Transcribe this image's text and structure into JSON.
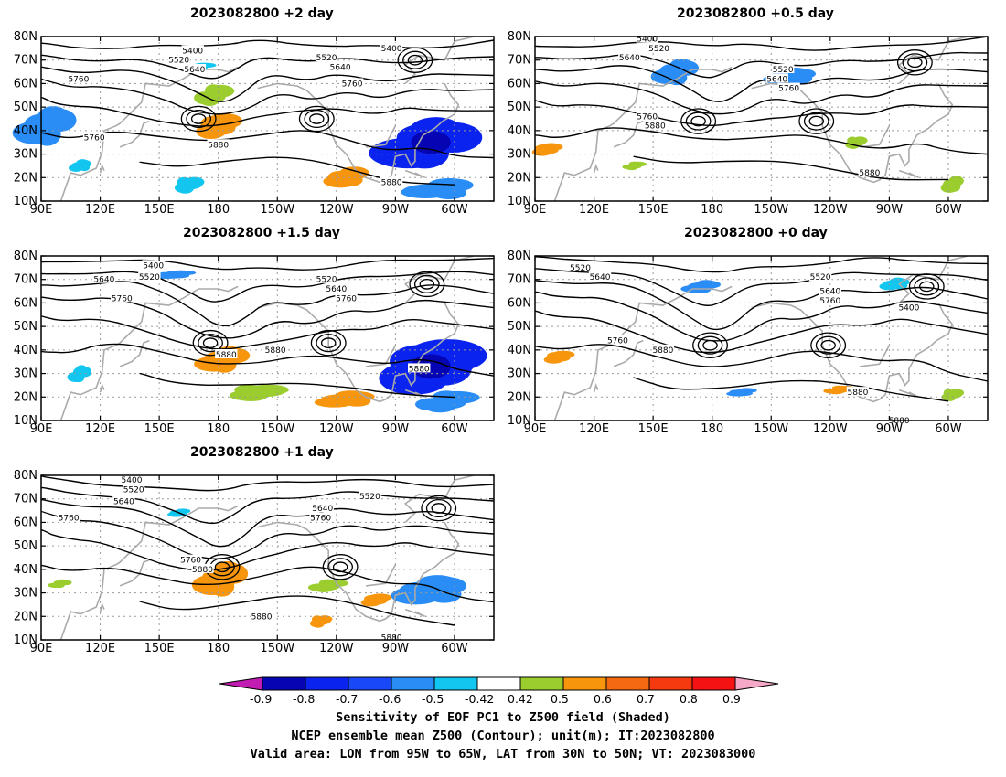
{
  "panels": [
    {
      "id": "p-plus2",
      "title": "2023082800 +2 day",
      "contour_labels": [
        {
          "text": "5400",
          "lon": 167,
          "lat": 74
        },
        {
          "text": "5520",
          "lon": 160,
          "lat": 70
        },
        {
          "text": "5640",
          "lon": 168,
          "lat": 66
        },
        {
          "text": "5760",
          "lon": 109,
          "lat": 62
        },
        {
          "text": "5760",
          "lon": 117,
          "lat": 37
        },
        {
          "text": "5880",
          "lon": 180,
          "lat": 34
        },
        {
          "text": "5400",
          "lon": -92,
          "lat": 75
        },
        {
          "text": "5520",
          "lon": -125,
          "lat": 71
        },
        {
          "text": "5640",
          "lon": -118,
          "lat": 67
        },
        {
          "text": "5760",
          "lon": -112,
          "lat": 60
        },
        {
          "text": "5880",
          "lon": -92,
          "lat": 18
        }
      ],
      "shading": [
        {
          "lon": 93,
          "lat": 42,
          "rx": 8,
          "ry": 9,
          "v": "-0.6"
        },
        {
          "lon": 110,
          "lat": 25,
          "rx": 3,
          "ry": 3,
          "v": "-0.5"
        },
        {
          "lon": 180,
          "lat": 42,
          "rx": 6,
          "ry": 6,
          "v": "0.6"
        },
        {
          "lon": 177,
          "lat": 55,
          "rx": 5,
          "ry": 5,
          "v": "0.5"
        },
        {
          "lon": 165,
          "lat": 17,
          "rx": 4,
          "ry": 4,
          "v": "-0.5"
        },
        {
          "lon": -115,
          "lat": 20,
          "rx": 6,
          "ry": 5,
          "v": "0.6"
        },
        {
          "lon": -72,
          "lat": 35,
          "rx": 14,
          "ry": 12,
          "v": "-0.8"
        },
        {
          "lon": -68,
          "lat": 15,
          "rx": 10,
          "ry": 5,
          "v": "-0.6"
        },
        {
          "lon": -30,
          "lat": 35,
          "rx": 3,
          "ry": 4,
          "v": "-0.5"
        },
        {
          "lon": 170,
          "lat": 67,
          "rx": 4,
          "ry": 2,
          "v": "-0.5"
        }
      ]
    },
    {
      "id": "p-plus05",
      "title": "2023082800 +0.5 day",
      "contour_labels": [
        {
          "text": "5400",
          "lon": 147,
          "lat": 79
        },
        {
          "text": "5520",
          "lon": 153,
          "lat": 75
        },
        {
          "text": "5640",
          "lon": 138,
          "lat": 71
        },
        {
          "text": "5520",
          "lon": -144,
          "lat": 66
        },
        {
          "text": "5640",
          "lon": -147,
          "lat": 62
        },
        {
          "text": "5760",
          "lon": -141,
          "lat": 58
        },
        {
          "text": "5760",
          "lon": 147,
          "lat": 46
        },
        {
          "text": "5880",
          "lon": 151,
          "lat": 42
        },
        {
          "text": "5880",
          "lon": -100,
          "lat": 22
        }
      ],
      "shading": [
        {
          "lon": 162,
          "lat": 65,
          "rx": 6,
          "ry": 6,
          "v": "-0.6"
        },
        {
          "lon": -140,
          "lat": 63,
          "rx": 7,
          "ry": 4,
          "v": "-0.6"
        },
        {
          "lon": 96,
          "lat": 32,
          "rx": 4,
          "ry": 3,
          "v": "0.6"
        },
        {
          "lon": 140,
          "lat": 25,
          "rx": 3,
          "ry": 2,
          "v": "0.5"
        },
        {
          "lon": -107,
          "lat": 35,
          "rx": 3,
          "ry": 3,
          "v": "0.5"
        },
        {
          "lon": -58,
          "lat": 17,
          "rx": 3,
          "ry": 4,
          "v": "0.5"
        }
      ]
    },
    {
      "id": "p-plus15",
      "title": "2023082800 +1.5 day",
      "contour_labels": [
        {
          "text": "5400",
          "lon": 147,
          "lat": 76
        },
        {
          "text": "5520",
          "lon": 145,
          "lat": 71
        },
        {
          "text": "5640",
          "lon": 122,
          "lat": 70
        },
        {
          "text": "5760",
          "lon": 131,
          "lat": 62
        },
        {
          "text": "5880",
          "lon": 184,
          "lat": 38
        },
        {
          "text": "5880",
          "lon": -151,
          "lat": 40
        },
        {
          "text": "5520",
          "lon": -125,
          "lat": 70
        },
        {
          "text": "5640",
          "lon": -120,
          "lat": 66
        },
        {
          "text": "5760",
          "lon": -115,
          "lat": 62
        },
        {
          "text": "5880",
          "lon": -78,
          "lat": 32
        }
      ],
      "shading": [
        {
          "lon": 183,
          "lat": 36,
          "rx": 7,
          "ry": 6,
          "v": "0.6"
        },
        {
          "lon": -115,
          "lat": 19,
          "rx": 8,
          "ry": 4,
          "v": "0.6"
        },
        {
          "lon": -72,
          "lat": 33,
          "rx": 14,
          "ry": 13,
          "v": "-0.8"
        },
        {
          "lon": -65,
          "lat": 18,
          "rx": 8,
          "ry": 5,
          "v": "-0.6"
        },
        {
          "lon": -160,
          "lat": 22,
          "rx": 8,
          "ry": 4,
          "v": "0.5"
        },
        {
          "lon": 157,
          "lat": 72,
          "rx": 6,
          "ry": 2,
          "v": "-0.6"
        },
        {
          "lon": 110,
          "lat": 30,
          "rx": 3,
          "ry": 4,
          "v": "-0.5"
        }
      ]
    },
    {
      "id": "p-plus0",
      "title": "2023082800 +0 day",
      "contour_labels": [
        {
          "text": "5520",
          "lon": 113,
          "lat": 75
        },
        {
          "text": "5640",
          "lon": 123,
          "lat": 71
        },
        {
          "text": "5520",
          "lon": -125,
          "lat": 71
        },
        {
          "text": "5640",
          "lon": -120,
          "lat": 65
        },
        {
          "text": "5760",
          "lon": -120,
          "lat": 61
        },
        {
          "text": "5400",
          "lon": -80,
          "lat": 58
        },
        {
          "text": "5760",
          "lon": 132,
          "lat": 44
        },
        {
          "text": "5880",
          "lon": 155,
          "lat": 40
        },
        {
          "text": "5880",
          "lon": -106,
          "lat": 22
        },
        {
          "text": "5880",
          "lon": -85,
          "lat": 10
        }
      ],
      "shading": [
        {
          "lon": 175,
          "lat": 67,
          "rx": 5,
          "ry": 3,
          "v": "-0.6"
        },
        {
          "lon": -87,
          "lat": 68,
          "rx": 4,
          "ry": 3,
          "v": "-0.5"
        },
        {
          "lon": 102,
          "lat": 37,
          "rx": 4,
          "ry": 3,
          "v": "0.6"
        },
        {
          "lon": -116,
          "lat": 23,
          "rx": 4,
          "ry": 2,
          "v": "0.6"
        },
        {
          "lon": -58,
          "lat": 21,
          "rx": 3,
          "ry": 3,
          "v": "0.5"
        },
        {
          "lon": -165,
          "lat": 22,
          "rx": 4,
          "ry": 2,
          "v": "-0.6"
        }
      ]
    },
    {
      "id": "p-plus1",
      "title": "2023082800 +1 day",
      "contour_labels": [
        {
          "text": "5400",
          "lon": 136,
          "lat": 78
        },
        {
          "text": "5520",
          "lon": 137,
          "lat": 74
        },
        {
          "text": "5640",
          "lon": 132,
          "lat": 69
        },
        {
          "text": "5760",
          "lon": 104,
          "lat": 62
        },
        {
          "text": "5640",
          "lon": -127,
          "lat": 66
        },
        {
          "text": "5760",
          "lon": -128,
          "lat": 62
        },
        {
          "text": "5520",
          "lon": -103,
          "lat": 71
        },
        {
          "text": "5760",
          "lon": 166,
          "lat": 44
        },
        {
          "text": "5880",
          "lon": 172,
          "lat": 40
        },
        {
          "text": "5880",
          "lon": -158,
          "lat": 20
        },
        {
          "text": "5880",
          "lon": -92,
          "lat": 11
        }
      ],
      "shading": [
        {
          "lon": 182,
          "lat": 36,
          "rx": 7,
          "ry": 8,
          "v": "0.6"
        },
        {
          "lon": -72,
          "lat": 31,
          "rx": 10,
          "ry": 7,
          "v": "-0.6"
        },
        {
          "lon": -100,
          "lat": 27,
          "rx": 4,
          "ry": 3,
          "v": "0.6"
        },
        {
          "lon": -125,
          "lat": 33,
          "rx": 5,
          "ry": 3,
          "v": "0.5"
        },
        {
          "lon": -128,
          "lat": 18,
          "rx": 3,
          "ry": 3,
          "v": "0.6"
        },
        {
          "lon": 160,
          "lat": 64,
          "rx": 3,
          "ry": 2,
          "v": "-0.5"
        },
        {
          "lon": 100,
          "lat": 34,
          "rx": 3,
          "ry": 2,
          "v": "0.5"
        }
      ]
    }
  ],
  "map": {
    "lon_ticks": [
      "90E",
      "120E",
      "150E",
      "180",
      "150W",
      "120W",
      "90W",
      "60W"
    ],
    "lat_ticks": [
      "10N",
      "20N",
      "30N",
      "40N",
      "50N",
      "60N",
      "70N",
      "80N"
    ]
  },
  "colorbar": {
    "ticks": [
      "-0.9",
      "-0.8",
      "-0.7",
      "-0.6",
      "-0.5",
      "-0.42",
      "0.42",
      "0.5",
      "0.6",
      "0.7",
      "0.8",
      "0.9"
    ],
    "colors": {
      "below": "#c21cb2",
      "-0.9": "#0505b4",
      "-0.8": "#0b23ee",
      "-0.7": "#1848f8",
      "-0.6": "#2a8cf5",
      "-0.5": "#12c6f0",
      "neutral": "#ffffff",
      "0.5": "#9bcd2f",
      "0.6": "#f7960d",
      "0.7": "#f36a12",
      "0.8": "#f53a10",
      "0.9": "#f51212",
      "above": "#f6a8c8"
    }
  },
  "footer": {
    "line1": "Sensitivity of EOF PC1 to Z500 field (Shaded)",
    "line2": "NCEP ensemble mean Z500 (Contour); unit(m); IT:2023082800",
    "line3": "Valid area: LON from 95W to 65W, LAT from 30N to 50N; VT: 2023083000"
  }
}
